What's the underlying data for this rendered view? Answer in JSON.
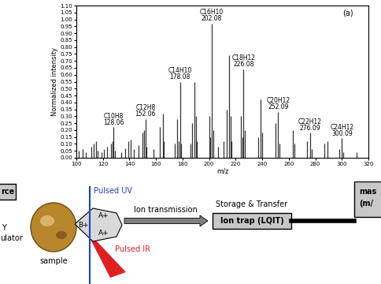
{
  "chart_data": {
    "type": "stem",
    "panel_label": "(a)",
    "x_label": "m/z",
    "y_label": "Normalized intensity",
    "x": [
      102,
      105,
      107,
      111,
      113,
      115,
      116,
      119,
      121,
      123,
      126,
      127,
      128,
      129,
      134,
      137,
      139,
      141,
      143,
      147,
      150,
      151,
      152,
      153,
      158,
      163,
      165,
      166,
      174,
      176,
      177,
      178,
      179,
      186,
      187,
      189,
      190,
      191,
      200,
      201,
      202,
      203,
      207,
      211,
      213,
      215,
      216,
      217,
      224,
      225,
      226,
      227,
      237,
      239,
      240,
      250,
      252,
      253,
      263,
      264,
      274,
      276,
      277,
      287,
      289,
      298,
      300,
      301,
      311
    ],
    "values": [
      0.05,
      0.06,
      0.04,
      0.08,
      0.1,
      0.12,
      0.05,
      0.04,
      0.06,
      0.08,
      0.1,
      0.12,
      0.22,
      0.05,
      0.04,
      0.07,
      0.12,
      0.13,
      0.06,
      0.09,
      0.18,
      0.2,
      0.28,
      0.08,
      0.06,
      0.22,
      0.32,
      0.12,
      0.1,
      0.28,
      0.12,
      0.55,
      0.1,
      0.1,
      0.25,
      0.55,
      0.3,
      0.12,
      0.3,
      0.15,
      0.97,
      0.2,
      0.08,
      0.12,
      0.35,
      0.74,
      0.3,
      0.12,
      0.3,
      0.15,
      0.64,
      0.2,
      0.15,
      0.42,
      0.18,
      0.25,
      0.33,
      0.1,
      0.2,
      0.1,
      0.12,
      0.18,
      0.06,
      0.1,
      0.12,
      0.06,
      0.14,
      0.04,
      0.04
    ],
    "color": "#333333",
    "xlim": [
      100,
      320
    ],
    "xticks": [
      100,
      120,
      140,
      160,
      180,
      200,
      220,
      240,
      260,
      280,
      300,
      320
    ],
    "ylim": [
      0,
      1.1
    ],
    "yticks": [
      {
        "value": 0,
        "label": "0.00"
      },
      {
        "value": 0.05,
        "label": "0.05"
      },
      {
        "value": 0.1,
        "label": "0.10"
      },
      {
        "value": 0.15,
        "label": "0.15"
      },
      {
        "value": 0.2,
        "label": "0.20"
      },
      {
        "value": 0.25,
        "label": "0.25"
      },
      {
        "value": 0.3,
        "label": "0.30"
      },
      {
        "value": 0.35,
        "label": "0.35"
      },
      {
        "value": 0.4,
        "label": "0.40"
      },
      {
        "value": 0.45,
        "label": "0.45"
      },
      {
        "value": 0.5,
        "label": "0.50"
      },
      {
        "value": 0.55,
        "label": "0.55"
      },
      {
        "value": 0.6,
        "label": "0.60"
      },
      {
        "value": 0.65,
        "label": "0.65"
      },
      {
        "value": 0.7,
        "label": "0.70"
      },
      {
        "value": 0.75,
        "label": "0.75"
      },
      {
        "value": 0.8,
        "label": "0.80"
      },
      {
        "value": 0.85,
        "label": "0.85"
      },
      {
        "value": 0.9,
        "label": "0.90"
      },
      {
        "value": 0.95,
        "label": "0.95"
      },
      {
        "value": 1.0,
        "label": "1.00"
      },
      {
        "value": 1.05,
        "label": "1.05"
      },
      {
        "value": 1.1,
        "label": "1.10"
      }
    ],
    "annotations": [
      {
        "formula": "C10H8",
        "label": "128.06"
      },
      {
        "formula": "C12H8",
        "label": "152.06"
      },
      {
        "formula": "C14H10",
        "label": "178.08"
      },
      {
        "formula": "C16H10",
        "label": "202.08"
      },
      {
        "formula": "C18H12",
        "label": "226.08"
      },
      {
        "formula": "C20H12",
        "label": "252.09"
      },
      {
        "formula": "C22H12",
        "label": "276.09"
      },
      {
        "formula": "C24H12",
        "label": "300.09"
      }
    ]
  },
  "diagram": {
    "source_box": "rce",
    "source_lines": [
      "Y",
      "ulator"
    ],
    "sample": "sample",
    "uv": "Pulsed UV",
    "ir": "Pulsed IR",
    "ions": [
      "B+",
      "A+",
      "A+"
    ],
    "transmission": "Ion transmission",
    "trap_caption": "Storage & Transfer",
    "trap": "Ion trap (LQIT)",
    "analyzer": [
      "mas",
      "(m/"
    ]
  }
}
